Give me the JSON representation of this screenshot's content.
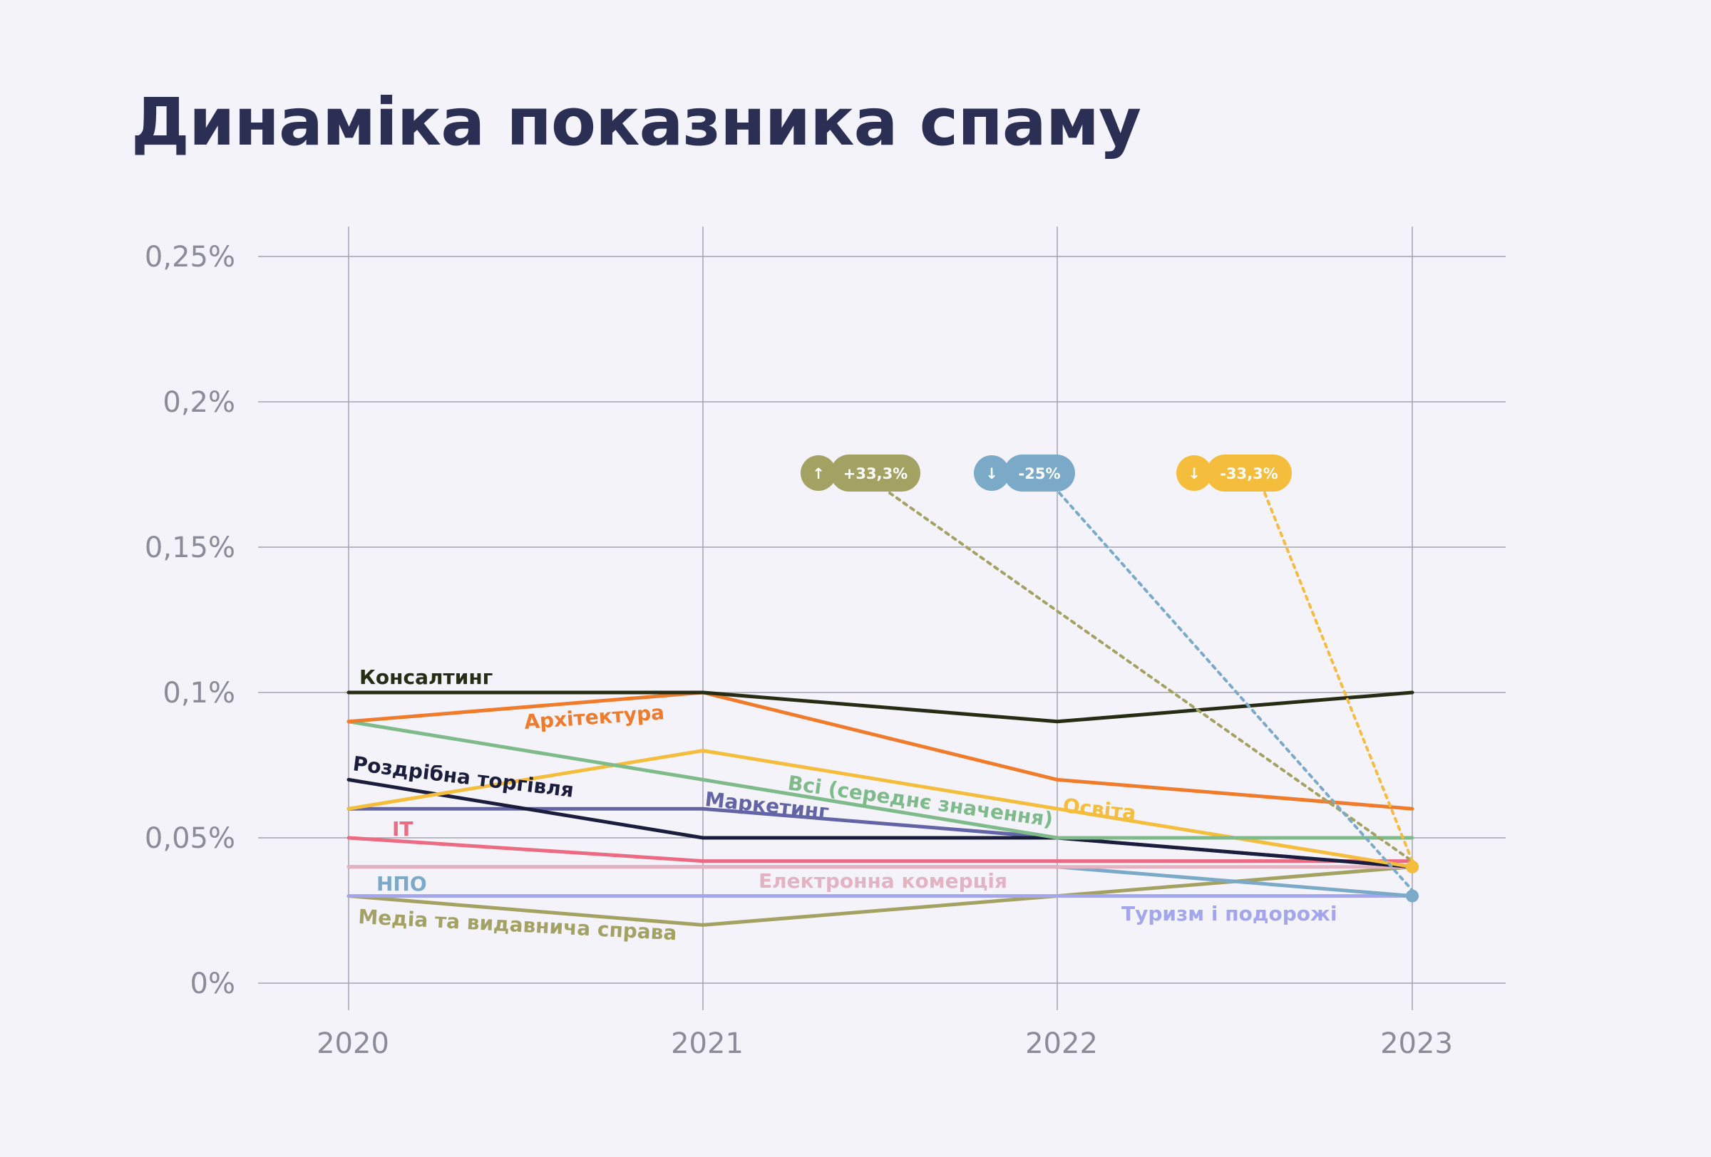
{
  "page": {
    "title": "Динаміка показника спаму"
  },
  "chart_data": {
    "type": "line",
    "title": "Динаміка показника спаму",
    "xlabel": "",
    "ylabel": "",
    "x": [
      "2020",
      "2021",
      "2022",
      "2023"
    ],
    "ylim": [
      0,
      0.25
    ],
    "y_ticks": [
      {
        "value": 0,
        "label": "0%"
      },
      {
        "value": 0.05,
        "label": "0,05%"
      },
      {
        "value": 0.1,
        "label": "0,1%"
      },
      {
        "value": 0.15,
        "label": "0,15%"
      },
      {
        "value": 0.2,
        "label": "0,2%"
      },
      {
        "value": 0.25,
        "label": "0,25%"
      }
    ],
    "grid": true,
    "legend": "inline labels",
    "series": [
      {
        "name": "Консалтинг",
        "color": "#262d14",
        "values": [
          0.1,
          0.1,
          0.09,
          0.1
        ]
      },
      {
        "name": "Архітектура",
        "color": "#f07b2b",
        "values": [
          0.09,
          0.1,
          0.07,
          0.06
        ]
      },
      {
        "name": "Всі (середнє значення)",
        "color": "#7fba8b",
        "values": [
          0.09,
          0.07,
          0.05,
          0.05
        ]
      },
      {
        "name": "Освіта",
        "color": "#f5bd3c",
        "values": [
          0.06,
          0.08,
          0.06,
          0.04
        ]
      },
      {
        "name": "Роздрібна торгівля",
        "color": "#1b1d3d",
        "values": [
          0.07,
          0.05,
          0.05,
          0.04
        ]
      },
      {
        "name": "Маркетинг",
        "color": "#6364a6",
        "values": [
          0.06,
          0.06,
          0.05,
          0.04
        ]
      },
      {
        "name": "IT",
        "color": "#ec6a82",
        "values": [
          0.05,
          0.042,
          0.042,
          0.042
        ]
      },
      {
        "name": "Електронна комерція",
        "color": "#e4b3c2",
        "values": [
          0.04,
          0.04,
          0.04,
          0.04
        ]
      },
      {
        "name": "НПО",
        "color": "#7aaac8",
        "values": [
          0.04,
          0.04,
          0.04,
          0.03
        ]
      },
      {
        "name": "Туризм і подорожі",
        "color": "#a3a6ef",
        "values": [
          0.03,
          0.03,
          0.03,
          0.03
        ]
      },
      {
        "name": "Медіа та видавнича справа",
        "color": "#a4a263",
        "values": [
          0.03,
          0.02,
          0.03,
          0.04
        ]
      }
    ],
    "annotations": [
      {
        "text": "+33,3%",
        "direction": "up",
        "color": "#a4a263",
        "series": "Медіа та видавнича справа"
      },
      {
        "text": "-25%",
        "direction": "down",
        "color": "#7aaac8",
        "series": "НПО"
      },
      {
        "text": "-33,3%",
        "direction": "down",
        "color": "#f5bd3c",
        "series": "Освіта"
      }
    ]
  }
}
